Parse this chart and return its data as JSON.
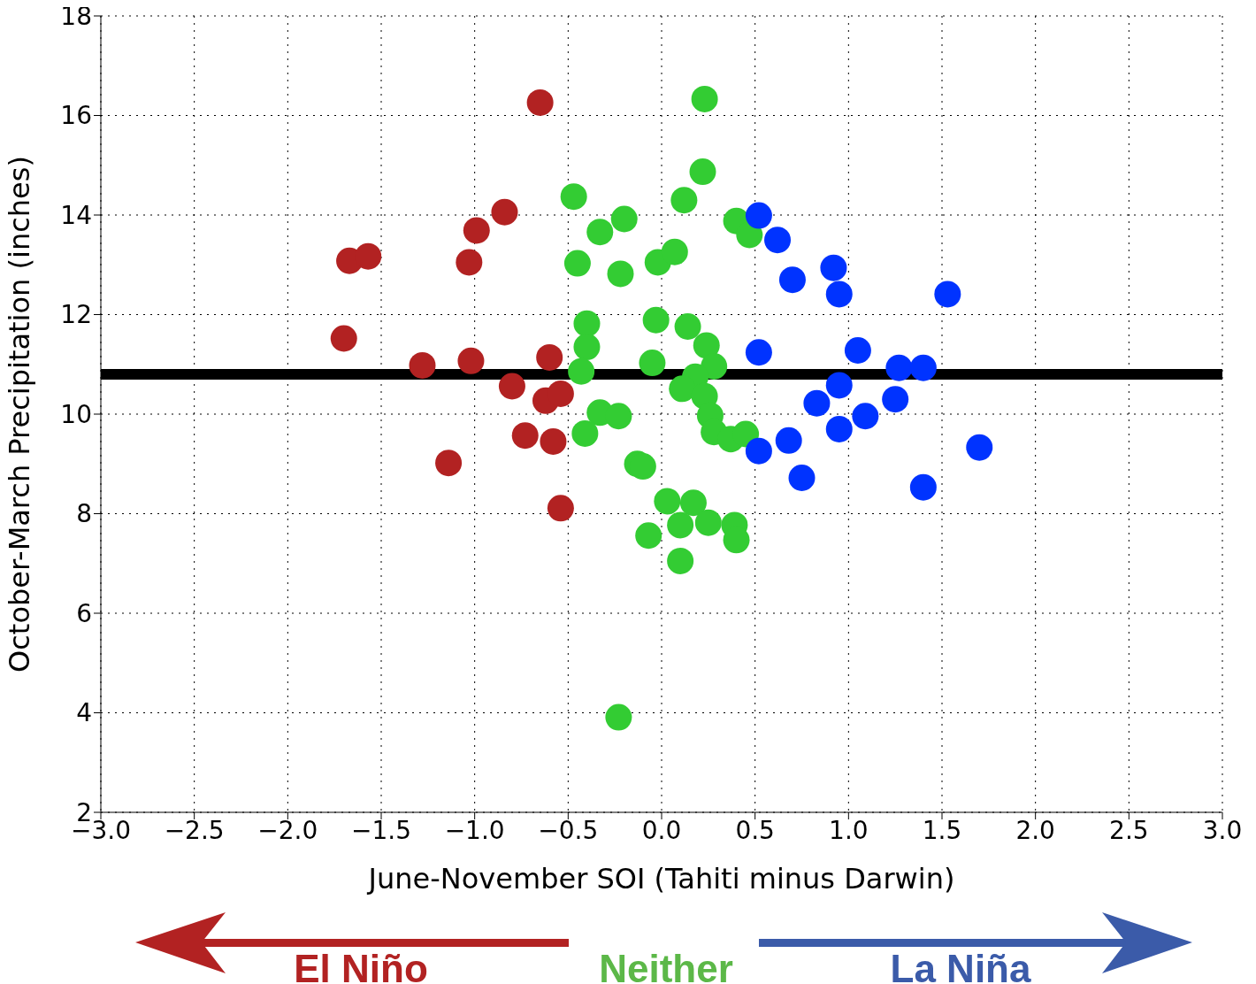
{
  "chart_data": {
    "type": "scatter",
    "xlabel": "June-November SOI (Tahiti minus Darwin)",
    "ylabel": "October-March Precipitation (inches)",
    "xlim": [
      -3,
      3
    ],
    "xticks": [
      {
        "value": -3,
        "label": "−3.0"
      },
      {
        "value": -2.5,
        "label": "−2.5"
      },
      {
        "value": -2,
        "label": "−2.0"
      },
      {
        "value": -1.5,
        "label": "−1.5"
      },
      {
        "value": -1,
        "label": "−1.0"
      },
      {
        "value": -0.5,
        "label": "−0.5"
      },
      {
        "value": 0,
        "label": "0.0"
      },
      {
        "value": 0.5,
        "label": "0.5"
      },
      {
        "value": 1,
        "label": "1.0"
      },
      {
        "value": 1.5,
        "label": "1.5"
      },
      {
        "value": 2,
        "label": "2.0"
      },
      {
        "value": 2.5,
        "label": "2.5"
      },
      {
        "value": 3,
        "label": "3.0"
      }
    ],
    "ylim": [
      2,
      18
    ],
    "yticks": [
      2,
      4,
      6,
      8,
      10,
      12,
      14,
      16,
      18
    ],
    "grid": true,
    "marker": "circle",
    "legend": false,
    "series": [
      {
        "color": "#b22222",
        "x": [
          -1.67,
          -1.57,
          -1.7,
          -1.28,
          -1.14,
          -1.03,
          -0.99,
          -1.02,
          -0.84,
          -0.8,
          -0.73,
          -0.65,
          -0.6,
          -0.62,
          -0.54,
          -0.58,
          -0.54
        ],
        "values": [
          13.08,
          13.17,
          11.52,
          10.98,
          9.02,
          13.05,
          13.69,
          11.07,
          14.06,
          10.56,
          9.57,
          16.26,
          11.14,
          10.27,
          10.41,
          9.45,
          8.11
        ]
      },
      {
        "color": "#33cc33",
        "x": [
          0.23,
          0.22,
          -0.47,
          0.12,
          -0.2,
          -0.33,
          0.4,
          0.47,
          -0.45,
          -0.22,
          -0.02,
          0.07,
          -0.4,
          -0.4,
          -0.43,
          -0.03,
          -0.05,
          0.14,
          0.24,
          0.28,
          0.18,
          0.11,
          0.23,
          0.26,
          0.28,
          0.37,
          0.45,
          -0.33,
          -0.23,
          -0.41,
          -0.13,
          -0.1,
          0.03,
          0.17,
          0.1,
          0.25,
          0.39,
          0.4,
          -0.07,
          0.1,
          -0.23
        ],
        "values": [
          16.33,
          14.87,
          14.37,
          14.3,
          13.92,
          13.66,
          13.88,
          13.6,
          13.03,
          12.82,
          13.05,
          13.26,
          11.82,
          11.35,
          10.86,
          11.89,
          11.03,
          11.76,
          11.38,
          10.96,
          10.75,
          10.51,
          10.36,
          9.97,
          9.64,
          9.5,
          9.6,
          10.03,
          9.96,
          9.61,
          9.0,
          8.95,
          8.25,
          8.22,
          7.77,
          7.82,
          7.77,
          7.47,
          7.56,
          7.05,
          3.91
        ]
      },
      {
        "color": "#0033ff",
        "x": [
          0.52,
          0.62,
          0.7,
          0.92,
          0.95,
          1.53,
          0.52,
          1.05,
          1.27,
          1.4,
          0.95,
          0.83,
          1.25,
          1.09,
          0.95,
          0.68,
          0.52,
          0.75,
          1.4,
          1.7
        ],
        "values": [
          13.99,
          13.5,
          12.7,
          12.94,
          12.41,
          12.41,
          11.24,
          11.28,
          10.93,
          10.93,
          10.58,
          10.22,
          10.3,
          9.96,
          9.7,
          9.47,
          9.26,
          8.72,
          8.53,
          9.33
        ]
      }
    ],
    "ref_lines": [
      {
        "axis": "y",
        "value": 10.8,
        "color": "#000000"
      }
    ],
    "annotations": [
      "El Niño",
      "Neither",
      "La Niña"
    ]
  }
}
